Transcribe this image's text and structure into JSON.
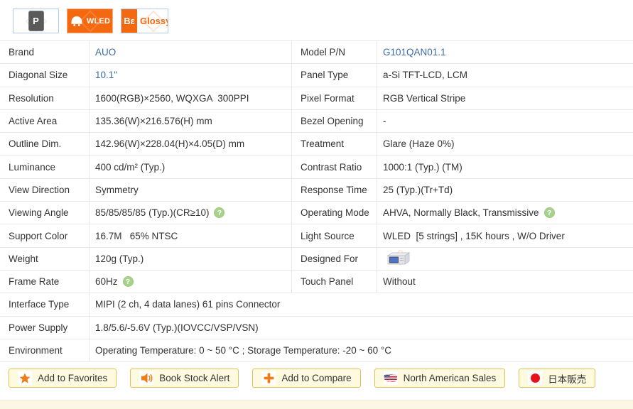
{
  "badges": {
    "thumbnail_letter": "P",
    "wled_label": "WLED",
    "glossy_left": "Bε",
    "glossy_label": "Glossy"
  },
  "table": {
    "rows": [
      {
        "cells": [
          {
            "label": "Brand",
            "value": "AUO",
            "value_link": true
          },
          {
            "label": "Model P/N",
            "value": "G101QAN01.1",
            "value_link": true
          }
        ]
      },
      {
        "cells": [
          {
            "label": "Diagonal Size",
            "value": "10.1\"",
            "value_link": true
          },
          {
            "label": "Panel Type",
            "value": "a-Si TFT-LCD, LCM"
          }
        ]
      },
      {
        "cells": [
          {
            "label": "Resolution",
            "value": "1600(RGB)×2560, WQXGA  300PPI"
          },
          {
            "label": "Pixel Format",
            "value": "RGB Vertical Stripe"
          }
        ]
      },
      {
        "cells": [
          {
            "label": "Active Area",
            "value": "135.36(W)×216.576(H) mm"
          },
          {
            "label": "Bezel Opening",
            "value": "-"
          }
        ]
      },
      {
        "cells": [
          {
            "label": "Outline Dim.",
            "value": "142.96(W)×228.04(H)×4.05(D) mm"
          },
          {
            "label": "Treatment",
            "value": "Glare (Haze 0%)"
          }
        ]
      },
      {
        "cells": [
          {
            "label": "Luminance",
            "value": "400 cd/m² (Typ.)"
          },
          {
            "label": "Contrast Ratio",
            "value": "1000:1 (Typ.) (TM)"
          }
        ]
      },
      {
        "cells": [
          {
            "label": "View Direction",
            "value": "Symmetry"
          },
          {
            "label": "Response Time",
            "value": "25 (Typ.)(Tr+Td)"
          }
        ]
      },
      {
        "cells": [
          {
            "label": "Viewing Angle",
            "value": "85/85/85/85 (Typ.)(CR≥10)",
            "help": true
          },
          {
            "label": "Operating Mode",
            "value": "AHVA, Normally Black, Transmissive",
            "help": true
          }
        ]
      },
      {
        "cells": [
          {
            "label": "Support Color",
            "value": "16.7M   65% NTSC"
          },
          {
            "label": "Light Source",
            "value": "WLED  [5 strings] , 15K hours , W/O Driver"
          }
        ]
      },
      {
        "cells": [
          {
            "label": "Weight",
            "value": "120g (Typ.)"
          },
          {
            "label": "Designed For",
            "value": "",
            "value_icon": "industrial-device-icon"
          }
        ]
      },
      {
        "cells": [
          {
            "label": "Frame Rate",
            "value": "60Hz",
            "help": true
          },
          {
            "label": "Touch Panel",
            "value": "Without"
          }
        ]
      },
      {
        "cells": [
          {
            "label": "Interface Type",
            "value": "MIPI (2 ch, 4 data lanes) 61 pins Connector",
            "span": "full"
          }
        ]
      },
      {
        "cells": [
          {
            "label": "Power Supply",
            "value": "1.8/5.6/-5.6V (Typ.)(IOVCC/VSP/VSN)",
            "span": "full"
          }
        ]
      },
      {
        "cells": [
          {
            "label": "Environment",
            "value": "Operating Temperature: 0 ~ 50 °C ; Storage Temperature: -20 ~ 60 °C",
            "span": "full"
          }
        ]
      }
    ],
    "help_icon_glyph": "?"
  },
  "buttons": [
    {
      "name": "add-to-favorites-button",
      "icon": "star-icon",
      "label": "Add to Favorites"
    },
    {
      "name": "book-stock-alert-button",
      "icon": "speaker-icon",
      "label": "Book Stock Alert"
    },
    {
      "name": "add-to-compare-button",
      "icon": "plus-icon",
      "label": "Add to Compare"
    },
    {
      "name": "north-american-sales-button",
      "icon": "us-flag-icon",
      "label": "North American Sales"
    },
    {
      "name": "japan-sales-button",
      "icon": "japan-flag-icon",
      "label": "日本販売"
    }
  ],
  "colors": {
    "accent_orange": "#f4690f",
    "icon_orange": "#ef7d1a",
    "link_blue": "#3c6ba8",
    "help_green": "#a8d28c",
    "button_bg": "#fdfae0",
    "button_border": "#ddc05a",
    "row_border": "#e8e8e8",
    "bottom_bar": "#fcf7e5"
  }
}
